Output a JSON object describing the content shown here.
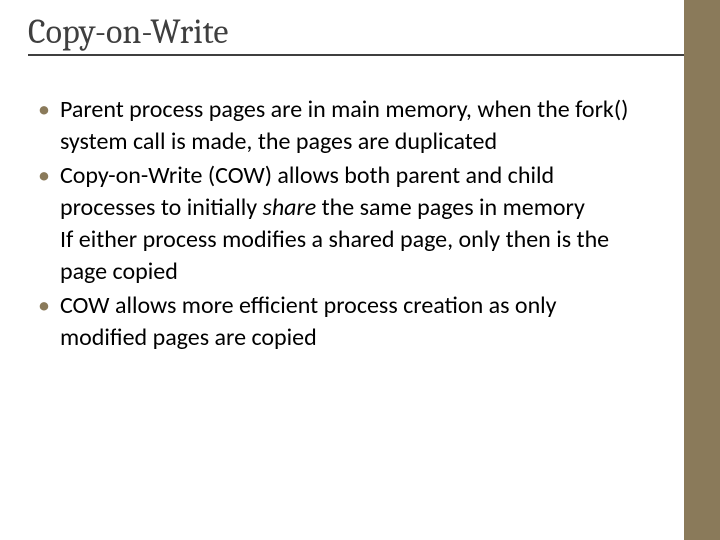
{
  "slide": {
    "title": "Copy-on-Write",
    "title_color": "#3f3f3f",
    "title_fontsize": 34,
    "title_font": "Cambria",
    "underline_color": "#3f3f3f",
    "bullet_color": "#8a7a5a",
    "bullet_char": "•",
    "body_fontsize": 24,
    "body_color": "#000000",
    "accent_bar_color": "#8a7a5a",
    "background_color": "#ffffff",
    "bullets": [
      {
        "text_pre": "Parent process pages are in main memory, when the fork() system call is made, the pages are duplicated",
        "italic": "",
        "text_post": ""
      },
      {
        "text_pre": "Copy-on-Write (COW) allows both parent and child processes to initially ",
        "italic": "share",
        "text_post": " the same pages in memory\nIf either process modifies a shared page, only then is the page copied"
      },
      {
        "text_pre": "COW allows more efficient process creation as only modified pages are copied",
        "italic": "",
        "text_post": ""
      }
    ]
  }
}
